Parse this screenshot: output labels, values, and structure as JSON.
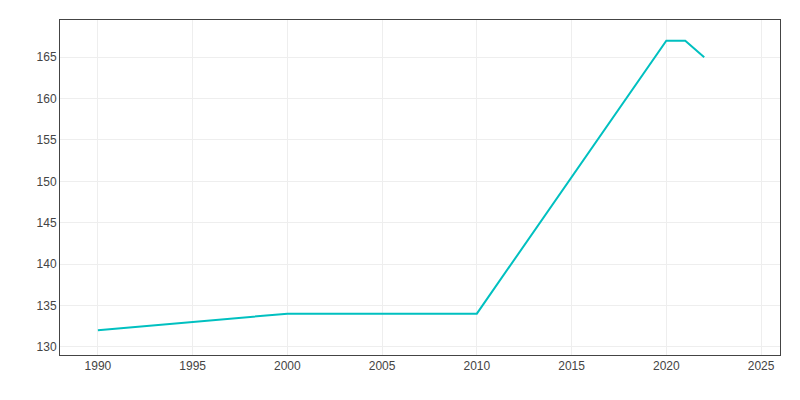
{
  "chart_data": {
    "type": "line",
    "x": [
      1990,
      2000,
      2010,
      2020,
      2021,
      2022
    ],
    "values": [
      132,
      134,
      134,
      167,
      167,
      165
    ],
    "color": "#00C0C0",
    "xlim": [
      1988,
      2026
    ],
    "ylim": [
      129,
      169.5
    ],
    "xticks": [
      1990,
      1995,
      2000,
      2005,
      2010,
      2015,
      2020,
      2025
    ],
    "yticks": [
      130,
      135,
      140,
      145,
      150,
      155,
      160,
      165
    ],
    "grid": true
  }
}
